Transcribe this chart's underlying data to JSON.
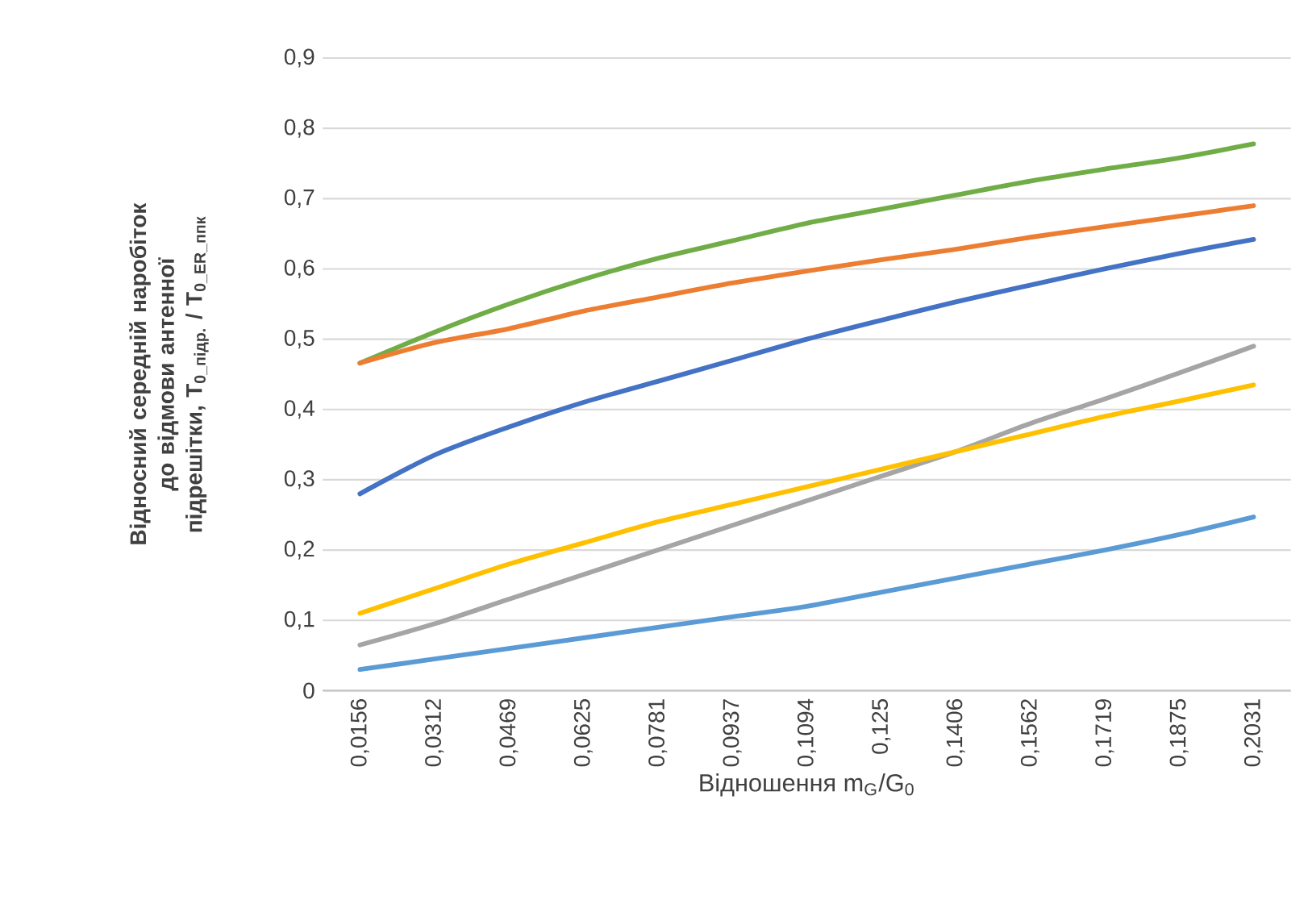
{
  "chart_data": {
    "type": "line",
    "xlabel": "Відношення m$_{G}$/G$_{0}$",
    "ylabel": "Відносний середній наробіток до відмови антенної підрешітки, T$_{0_підр.}$ / T$_{0_ER_ппк}$",
    "categories": [
      "0,0156",
      "0,0312",
      "0,0469",
      "0,0625",
      "0,0781",
      "0,0937",
      "0,1094",
      "0,125",
      "0,1406",
      "0,1562",
      "0,1719",
      "0,1875",
      "0,2031"
    ],
    "series": [
      {
        "color": "#70ad47",
        "values": [
          0.466,
          0.51,
          0.55,
          0.585,
          0.615,
          0.64,
          0.665,
          0.685,
          0.705,
          0.725,
          0.742,
          0.758,
          0.778
        ]
      },
      {
        "color": "#ed7d31",
        "values": [
          0.466,
          0.495,
          0.515,
          0.54,
          0.56,
          0.58,
          0.597,
          0.613,
          0.628,
          0.645,
          0.66,
          0.675,
          0.69
        ]
      },
      {
        "color": "#4472c4",
        "values": [
          0.28,
          0.335,
          0.375,
          0.41,
          0.44,
          0.47,
          0.5,
          0.527,
          0.553,
          0.577,
          0.6,
          0.622,
          0.642
        ]
      },
      {
        "color": "#a5a5a5",
        "values": [
          0.065,
          0.095,
          0.13,
          0.165,
          0.2,
          0.235,
          0.27,
          0.305,
          0.34,
          0.38,
          0.415,
          0.452,
          0.49
        ]
      },
      {
        "color": "#ffc000",
        "values": [
          0.11,
          0.145,
          0.18,
          0.21,
          0.24,
          0.265,
          0.29,
          0.315,
          0.34,
          0.365,
          0.39,
          0.412,
          0.435
        ]
      },
      {
        "color": "#5b9bd5",
        "values": [
          0.03,
          0.045,
          0.06,
          0.075,
          0.09,
          0.105,
          0.12,
          0.14,
          0.16,
          0.18,
          0.2,
          0.222,
          0.247
        ]
      }
    ],
    "ylim": [
      0,
      0.9
    ],
    "yticks": [
      0,
      {
        "value": 0.1,
        "label": "0,1"
      },
      {
        "value": 0.2,
        "label": "0,2"
      },
      {
        "value": 0.3,
        "label": "0,3"
      },
      {
        "value": 0.4,
        "label": "0,4"
      },
      {
        "value": 0.5,
        "label": "0,5"
      },
      {
        "value": 0.6,
        "label": "0,6"
      },
      {
        "value": 0.7,
        "label": "0,7"
      },
      {
        "value": 0.8,
        "label": "0,8"
      },
      {
        "value": 0.9,
        "label": "0,9"
      }
    ],
    "grid": "y",
    "marker": "none",
    "line_style": "solid"
  }
}
